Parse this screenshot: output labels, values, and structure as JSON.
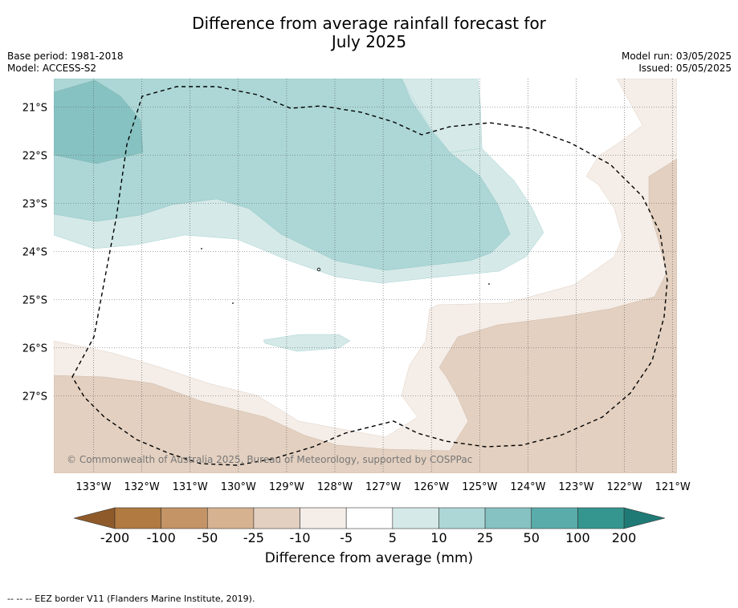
{
  "title": {
    "line1": "Difference from average rainfall forecast for",
    "line2": "July 2025"
  },
  "info_left": {
    "base_period": "Base period: 1981-2018",
    "model": "Model: ACCESS-S2"
  },
  "info_right": {
    "model_run": "Model run: 03/05/2025",
    "issued": "Issued: 05/05/2025"
  },
  "map": {
    "lon_range": [
      133.8,
      120.9
    ],
    "lat_range": [
      20.4,
      28.6
    ],
    "lon_ticks": [
      "133°W",
      "132°W",
      "131°W",
      "130°W",
      "129°W",
      "128°W",
      "127°W",
      "126°W",
      "125°W",
      "124°W",
      "123°W",
      "122°W",
      "121°W"
    ],
    "lat_ticks": [
      "21°S",
      "22°S",
      "23°S",
      "24°S",
      "25°S",
      "26°S",
      "27°S"
    ],
    "copyright": "© Commonwealth of Australia 2025, Bureau of Meteorology, supported by COSPPac",
    "eez_border_style": "dashed black",
    "colors": {
      "wet_10_25": "#acd7d6",
      "wet_5_10": "#d4e9e8",
      "wet_25_50": "#86c2c1",
      "dry_minus5_minus10": "#f4ede8",
      "dry_minus10_minus25": "#e3d0c0"
    }
  },
  "colorbar": {
    "tick_labels": [
      "-200",
      "-100",
      "-50",
      "-25",
      "-10",
      "-5",
      "5",
      "10",
      "25",
      "50",
      "100",
      "200"
    ],
    "colors": [
      "#b07a40",
      "#c49466",
      "#d6b291",
      "#e3d0c0",
      "#f4ede8",
      "#ffffff",
      "#d4e9e8",
      "#acd7d6",
      "#86c2c1",
      "#5aacaa",
      "#34968f"
    ],
    "extend_low_color": "#8f5a2a",
    "extend_high_color": "#1f7a75",
    "label": "Difference from average (mm)"
  },
  "footer": "-- -- -- EEZ border V11 (Flanders Marine Institute, 2019)."
}
